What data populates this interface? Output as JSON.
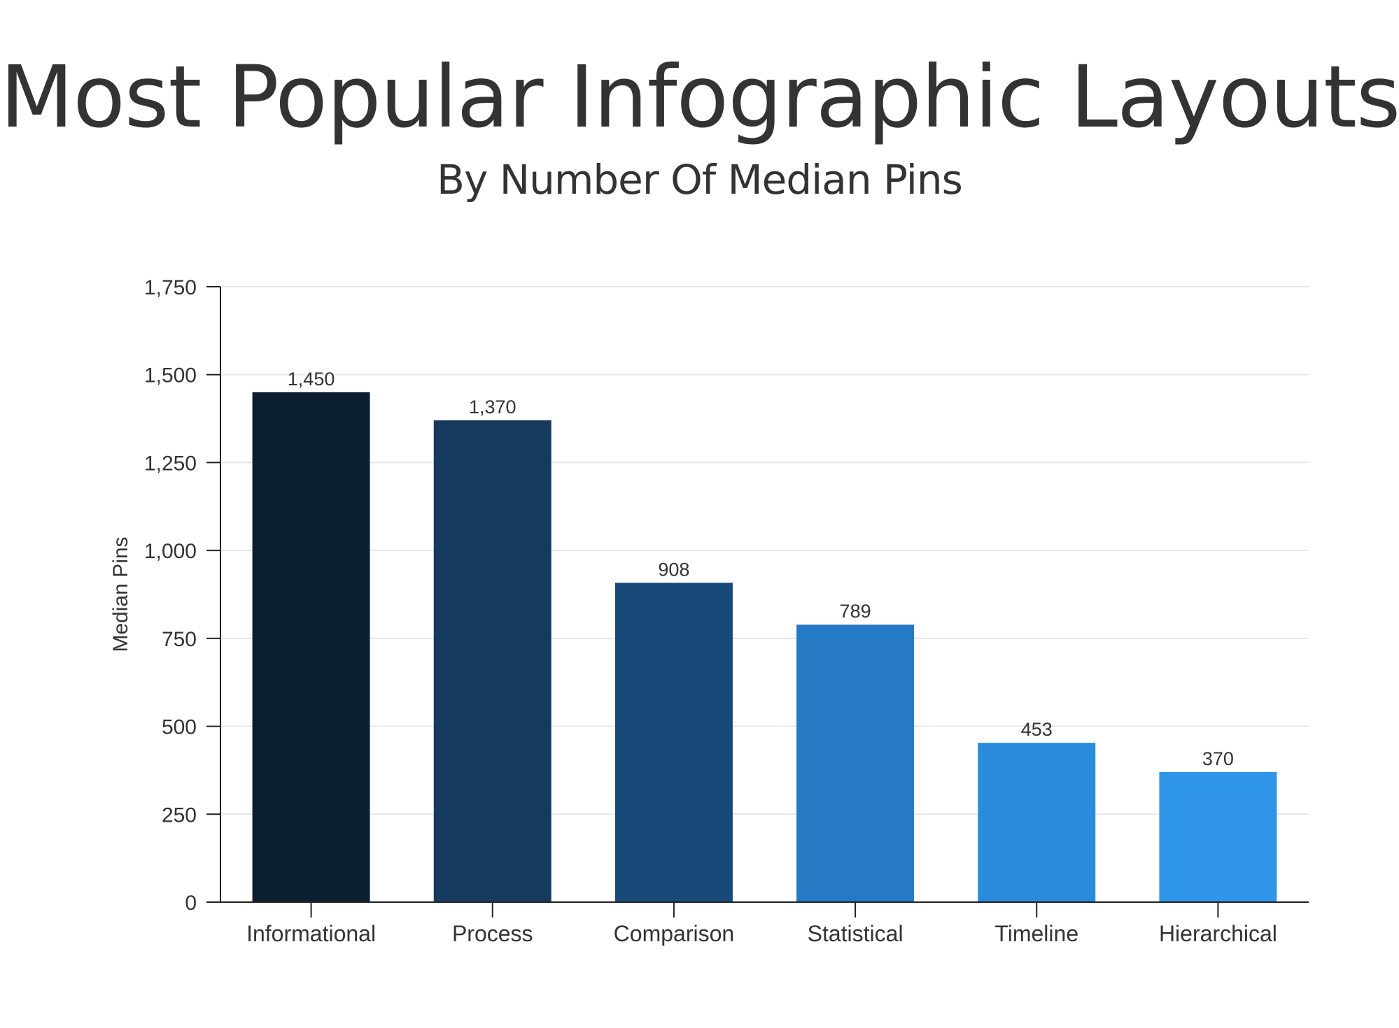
{
  "chart_data": {
    "type": "bar",
    "title": "Most Popular Infographic Layouts",
    "subtitle": "By Number Of Median Pins",
    "xlabel": "",
    "ylabel": "Median Pins",
    "categories": [
      "Informational",
      "Process",
      "Comparison",
      "Statistical",
      "Timeline",
      "Hierarchical"
    ],
    "values": [
      1450,
      1370,
      908,
      789,
      453,
      370
    ],
    "data_labels": [
      "1,450",
      "1,370",
      "908",
      "789",
      "453",
      "370"
    ],
    "ylim": [
      0,
      1750
    ],
    "yticks": [
      0,
      250,
      500,
      750,
      1000,
      1250,
      1500,
      1750
    ],
    "ytick_labels": [
      "0",
      "250",
      "500",
      "750",
      "1,000",
      "1,250",
      "1,500",
      "1,750"
    ],
    "grid": true,
    "legend": "none",
    "colors": [
      "#0c1f31",
      "#163a5e",
      "#174a78",
      "#2679c3",
      "#2a8bdd",
      "#3096ea"
    ],
    "grid_color": "#e6e6e6",
    "axis_color": "#222222"
  }
}
